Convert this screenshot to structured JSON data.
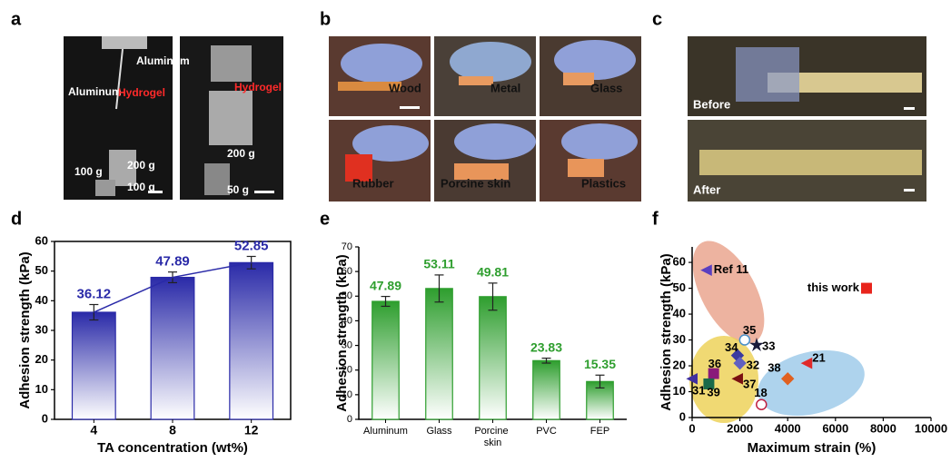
{
  "photo_panels": [
    {
      "panel": "a",
      "labels": [
        "Aluminum",
        "Aluminum",
        "Hydrogel",
        "200 g",
        "100 g",
        "100 g",
        "Hydrogel",
        "200 g",
        "50 g"
      ]
    },
    {
      "panel": "b",
      "labels": [
        "Wood",
        "Metal",
        "Glass",
        "Rubber",
        "Porcine skin",
        "Plastics"
      ]
    },
    {
      "panel": "c",
      "labels": [
        "Before",
        "After"
      ]
    }
  ],
  "chart_data": [
    {
      "panel": "d",
      "type": "bar",
      "categories": [
        "4",
        "8",
        "12"
      ],
      "values": [
        36.12,
        47.89,
        52.85
      ],
      "errors": [
        2.6,
        1.8,
        2.1
      ],
      "color": "#2a2aa8",
      "line": true,
      "xlabel": "TA concentration (wt%)",
      "ylabel": "Adhesion strength (kPa)",
      "ylim": [
        0,
        60
      ],
      "yticks": [
        0,
        10,
        20,
        30,
        40,
        50,
        60
      ]
    },
    {
      "panel": "e",
      "type": "bar",
      "categories": [
        "Aluminum",
        "Glass",
        "Porcine skin",
        "PVC",
        "FEP"
      ],
      "values": [
        47.89,
        53.11,
        49.81,
        23.83,
        15.35
      ],
      "errors": [
        2.0,
        5.5,
        5.5,
        1.0,
        2.6
      ],
      "color": "#2e9e2e",
      "line": false,
      "ylabel": "Adhesion strength (kPa)",
      "ylim": [
        0,
        70
      ],
      "yticks": [
        0,
        10,
        20,
        30,
        40,
        50,
        60,
        70
      ]
    },
    {
      "panel": "f",
      "type": "scatter",
      "xlabel": "Maximum strain (%)",
      "ylabel": "Adhesion strength (kPa)",
      "xlim": [
        0,
        10000
      ],
      "xticks": [
        0,
        2000,
        4000,
        6000,
        8000,
        10000
      ],
      "ylim": [
        0,
        66
      ],
      "yticks": [
        0,
        10,
        20,
        30,
        40,
        50,
        60
      ],
      "points": [
        {
          "label": "Ref 11",
          "x": 600,
          "y": 57,
          "color": "#5a3fc0",
          "marker": "triangle"
        },
        {
          "label": "this work",
          "x": 7300,
          "y": 50,
          "color": "#e8241c",
          "marker": "square"
        },
        {
          "label": "35",
          "x": 2200,
          "y": 30,
          "color": "#4a90c8",
          "marker": "circle"
        },
        {
          "label": "33",
          "x": 2700,
          "y": 28,
          "color": "#1a1a3a",
          "marker": "star"
        },
        {
          "label": "34",
          "x": 1900,
          "y": 24,
          "color": "#3a3aa0",
          "marker": "diamond"
        },
        {
          "label": "32",
          "x": 2000,
          "y": 21,
          "color": "#6060c0",
          "marker": "diamond"
        },
        {
          "label": "36",
          "x": 900,
          "y": 17,
          "color": "#8a1a7a",
          "marker": "square"
        },
        {
          "label": "37",
          "x": 1900,
          "y": 15,
          "color": "#7a1010",
          "marker": "triangle"
        },
        {
          "label": "31",
          "x": 0,
          "y": 15,
          "color": "#4030a0",
          "marker": "triangle"
        },
        {
          "label": "39",
          "x": 700,
          "y": 13,
          "color": "#1a6a4a",
          "marker": "square"
        },
        {
          "label": "38",
          "x": 4000,
          "y": 15,
          "color": "#e06020",
          "marker": "diamond"
        },
        {
          "label": "21",
          "x": 4800,
          "y": 21,
          "color": "#e02a2a",
          "marker": "triangle"
        },
        {
          "label": "18",
          "x": 2900,
          "y": 5,
          "color": "#c02040",
          "marker": "circle"
        }
      ]
    }
  ]
}
